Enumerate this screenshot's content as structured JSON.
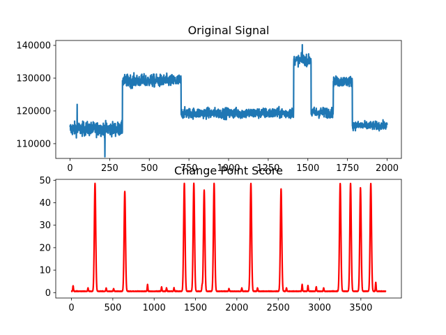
{
  "chart_data": [
    {
      "type": "line",
      "title": "Original Signal",
      "xlabel": "",
      "ylabel": "",
      "xlim": [
        -90,
        2090
      ],
      "ylim": [
        105500,
        141500
      ],
      "x_ticks": [
        0,
        250,
        500,
        750,
        1000,
        1250,
        1500,
        1750,
        2000
      ],
      "x_tick_labels": [
        "0",
        "250",
        "500",
        "750",
        "1000",
        "1250",
        "1500",
        "1750",
        "2000"
      ],
      "y_ticks": [
        110000,
        120000,
        130000,
        140000
      ],
      "y_tick_labels": [
        "110000",
        "120000",
        "130000",
        "140000"
      ],
      "grid": false,
      "color": "#1f77b4",
      "n_points": 2001,
      "segments": [
        {
          "x_start": 0,
          "x_end": 330,
          "mean": 114500,
          "noise": 2000
        },
        {
          "x_start": 330,
          "x_end": 700,
          "mean": 129200,
          "noise": 1800
        },
        {
          "x_start": 700,
          "x_end": 1410,
          "mean": 119300,
          "noise": 1500
        },
        {
          "x_start": 1410,
          "x_end": 1520,
          "mean": 135500,
          "noise": 1500
        },
        {
          "x_start": 1520,
          "x_end": 1660,
          "mean": 119500,
          "noise": 1500
        },
        {
          "x_start": 1660,
          "x_end": 1780,
          "mean": 129000,
          "noise": 1500
        },
        {
          "x_start": 1780,
          "x_end": 2000,
          "mean": 115500,
          "noise": 1200
        }
      ],
      "extremes": [
        {
          "x": 220,
          "y": 106000
        },
        {
          "x": 1465,
          "y": 140200
        },
        {
          "x": 45,
          "y": 122000
        }
      ]
    },
    {
      "type": "line",
      "title": "Change Point Score",
      "xlabel": "",
      "ylabel": "",
      "xlim": [
        -190,
        3990
      ],
      "ylim": [
        -2.4,
        50.4
      ],
      "x_ticks": [
        0,
        500,
        1000,
        1500,
        2000,
        2500,
        3000,
        3500
      ],
      "x_tick_labels": [
        "0",
        "500",
        "1000",
        "1500",
        "2000",
        "2500",
        "3000",
        "3500"
      ],
      "y_ticks": [
        0,
        10,
        20,
        30,
        40,
        50
      ],
      "y_tick_labels": [
        "0",
        "10",
        "20",
        "30",
        "40",
        "50"
      ],
      "grid": false,
      "color": "#ff0000",
      "n_points": 3801,
      "baseline": 0.5,
      "peaks": [
        {
          "x": 285,
          "height": 48
        },
        {
          "x": 645,
          "height": 44.5
        },
        {
          "x": 1365,
          "height": 48
        },
        {
          "x": 1480,
          "height": 48
        },
        {
          "x": 1605,
          "height": 45
        },
        {
          "x": 1725,
          "height": 48
        },
        {
          "x": 2170,
          "height": 48
        },
        {
          "x": 2535,
          "height": 45.5
        },
        {
          "x": 3250,
          "height": 48
        },
        {
          "x": 3375,
          "height": 48
        },
        {
          "x": 3495,
          "height": 46
        },
        {
          "x": 3620,
          "height": 48
        }
      ],
      "small_bumps": [
        {
          "x": 20,
          "height": 2.5
        },
        {
          "x": 200,
          "height": 1.5
        },
        {
          "x": 420,
          "height": 1.5
        },
        {
          "x": 510,
          "height": 1.2
        },
        {
          "x": 920,
          "height": 3
        },
        {
          "x": 1090,
          "height": 2
        },
        {
          "x": 1150,
          "height": 1.5
        },
        {
          "x": 1240,
          "height": 1.5
        },
        {
          "x": 1580,
          "height": 2.5
        },
        {
          "x": 1905,
          "height": 1.2
        },
        {
          "x": 2060,
          "height": 1.5
        },
        {
          "x": 2250,
          "height": 1.5
        },
        {
          "x": 2600,
          "height": 1.5
        },
        {
          "x": 2790,
          "height": 3
        },
        {
          "x": 2860,
          "height": 2.5
        },
        {
          "x": 2960,
          "height": 2
        },
        {
          "x": 3050,
          "height": 1.5
        },
        {
          "x": 3680,
          "height": 4
        }
      ]
    }
  ]
}
